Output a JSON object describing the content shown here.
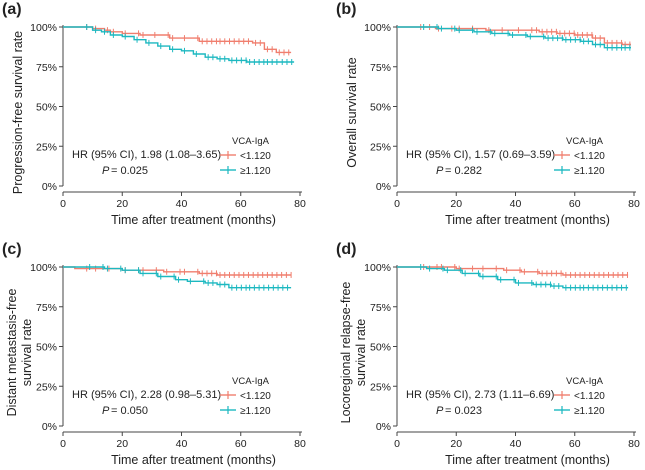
{
  "figure": {
    "colors": {
      "low": "#F07E6E",
      "high": "#1CB8C0",
      "axis": "#444444"
    }
  },
  "chart_data": [
    {
      "panel": "(a)",
      "type": "line",
      "subtype": "kaplan-meier",
      "ylabel": [
        "Progression-free survival rate"
      ],
      "xlabel": "Time after treatment (months)",
      "xlim": [
        0,
        80
      ],
      "ylim": [
        0,
        100
      ],
      "x_ticks": [
        0,
        20,
        40,
        60,
        80
      ],
      "y_ticks": [
        "0%",
        "25%",
        "50%",
        "75%",
        "100%"
      ],
      "annotation": {
        "hr": "HR (95% CI), 1.98 (1.08–3.65)",
        "p_label": "P",
        "p_value": " = 0.025"
      },
      "legend": {
        "title": "VCA-IgA",
        "items": [
          "<1.120",
          "≥1.120"
        ]
      },
      "series": [
        {
          "name": "<1.120",
          "points": [
            [
              0,
              100
            ],
            [
              5,
              100
            ],
            [
              10,
              99
            ],
            [
              14,
              98
            ],
            [
              16,
              97
            ],
            [
              20,
              96
            ],
            [
              26,
              95
            ],
            [
              30,
              95
            ],
            [
              36,
              93
            ],
            [
              40,
              93
            ],
            [
              46,
              91
            ],
            [
              52,
              91
            ],
            [
              60,
              91
            ],
            [
              64,
              90
            ],
            [
              68,
              86
            ],
            [
              72,
              84
            ],
            [
              77,
              84
            ]
          ]
        },
        {
          "name": "≥1.120",
          "points": [
            [
              0,
              100
            ],
            [
              6,
              100
            ],
            [
              10,
              98
            ],
            [
              13,
              97
            ],
            [
              16,
              95
            ],
            [
              20,
              94
            ],
            [
              24,
              92
            ],
            [
              28,
              90
            ],
            [
              32,
              88
            ],
            [
              36,
              86
            ],
            [
              40,
              85
            ],
            [
              44,
              83
            ],
            [
              48,
              81
            ],
            [
              52,
              80
            ],
            [
              56,
              79
            ],
            [
              62,
              78
            ],
            [
              68,
              78
            ],
            [
              73,
              78
            ],
            [
              78,
              78
            ]
          ]
        }
      ]
    },
    {
      "panel": "(b)",
      "type": "line",
      "subtype": "kaplan-meier",
      "ylabel": [
        "Overall survival rate"
      ],
      "xlabel": "Time after treatment (months)",
      "xlim": [
        0,
        80
      ],
      "ylim": [
        0,
        100
      ],
      "x_ticks": [
        0,
        20,
        40,
        60,
        80
      ],
      "y_ticks": [
        "0%",
        "25%",
        "50%",
        "75%",
        "100%"
      ],
      "annotation": {
        "hr": "HR (95% CI), 1.57 (0.69–3.59)",
        "p_label": "P",
        "p_value": " = 0.282"
      },
      "legend": {
        "title": "VCA-IgA",
        "items": [
          "<1.120",
          "≥1.120"
        ]
      },
      "series": [
        {
          "name": "<1.120",
          "points": [
            [
              0,
              100
            ],
            [
              10,
              100
            ],
            [
              13,
              99
            ],
            [
              20,
              99
            ],
            [
              30,
              98
            ],
            [
              40,
              98
            ],
            [
              48,
              97
            ],
            [
              54,
              96
            ],
            [
              60,
              95
            ],
            [
              66,
              93
            ],
            [
              70,
              90
            ],
            [
              76,
              89
            ],
            [
              79,
              89
            ]
          ]
        },
        {
          "name": "≥1.120",
          "points": [
            [
              0,
              100
            ],
            [
              8,
              100
            ],
            [
              14,
              99
            ],
            [
              20,
              98
            ],
            [
              26,
              97
            ],
            [
              32,
              96
            ],
            [
              38,
              95
            ],
            [
              44,
              94
            ],
            [
              50,
              93
            ],
            [
              56,
              92
            ],
            [
              62,
              91
            ],
            [
              66,
              89
            ],
            [
              70,
              87
            ],
            [
              76,
              87
            ],
            [
              79,
              87
            ]
          ]
        }
      ]
    },
    {
      "panel": "(c)",
      "type": "line",
      "subtype": "kaplan-meier",
      "ylabel": [
        "Distant metastasis-free",
        "survival rate"
      ],
      "xlabel": "Time after treatment (months)",
      "xlim": [
        0,
        80
      ],
      "ylim": [
        0,
        100
      ],
      "x_ticks": [
        0,
        20,
        40,
        60,
        80
      ],
      "y_ticks": [
        "0%",
        "25%",
        "50%",
        "75%",
        "100%"
      ],
      "annotation": {
        "hr": "HR (95% CI), 2.28 (0.98–5.31)",
        "p_label": "P",
        "p_value": " = 0.050"
      },
      "legend": {
        "title": "VCA-IgA",
        "items": [
          "<1.120",
          "≥1.120"
        ]
      },
      "series": [
        {
          "name": "<1.120",
          "points": [
            [
              0,
              100
            ],
            [
              4,
              99
            ],
            [
              10,
              99
            ],
            [
              20,
              98
            ],
            [
              26,
              98
            ],
            [
              34,
              97
            ],
            [
              40,
              97
            ],
            [
              46,
              96
            ],
            [
              52,
              95
            ],
            [
              60,
              95
            ],
            [
              68,
              95
            ],
            [
              77,
              95
            ]
          ]
        },
        {
          "name": "≥1.120",
          "points": [
            [
              0,
              100
            ],
            [
              8,
              100
            ],
            [
              14,
              99
            ],
            [
              20,
              98
            ],
            [
              26,
              96
            ],
            [
              32,
              94
            ],
            [
              38,
              92
            ],
            [
              42,
              91
            ],
            [
              48,
              90
            ],
            [
              52,
              89
            ],
            [
              56,
              87
            ],
            [
              62,
              87
            ],
            [
              70,
              87
            ],
            [
              77,
              87
            ]
          ]
        }
      ]
    },
    {
      "panel": "(d)",
      "type": "line",
      "subtype": "kaplan-meier",
      "ylabel": [
        "Locoregional relapse-free",
        "survival rate"
      ],
      "xlabel": "Time after treatment (months)",
      "xlim": [
        0,
        80
      ],
      "ylim": [
        0,
        100
      ],
      "x_ticks": [
        0,
        20,
        40,
        60,
        80
      ],
      "y_ticks": [
        "0%",
        "25%",
        "50%",
        "75%",
        "100%"
      ],
      "annotation": {
        "hr": "HR (95% CI), 2.73 (1.11–6.69)",
        "p_label": "P",
        "p_value": " = 0.023"
      },
      "legend": {
        "title": "VCA-IgA",
        "items": [
          "<1.120",
          "≥1.120"
        ]
      },
      "series": [
        {
          "name": "<1.120",
          "points": [
            [
              0,
              100
            ],
            [
              8,
              100
            ],
            [
              14,
              100
            ],
            [
              20,
              99
            ],
            [
              28,
              99
            ],
            [
              36,
              98
            ],
            [
              42,
              97
            ],
            [
              48,
              96
            ],
            [
              56,
              95
            ],
            [
              64,
              95
            ],
            [
              72,
              95
            ],
            [
              78,
              95
            ]
          ]
        },
        {
          "name": "≥1.120",
          "points": [
            [
              0,
              100
            ],
            [
              10,
              99
            ],
            [
              16,
              98
            ],
            [
              22,
              96
            ],
            [
              28,
              94
            ],
            [
              34,
              92
            ],
            [
              40,
              90
            ],
            [
              46,
              89
            ],
            [
              52,
              88
            ],
            [
              56,
              87
            ],
            [
              62,
              87
            ],
            [
              70,
              87
            ],
            [
              78,
              87
            ]
          ]
        }
      ]
    }
  ]
}
